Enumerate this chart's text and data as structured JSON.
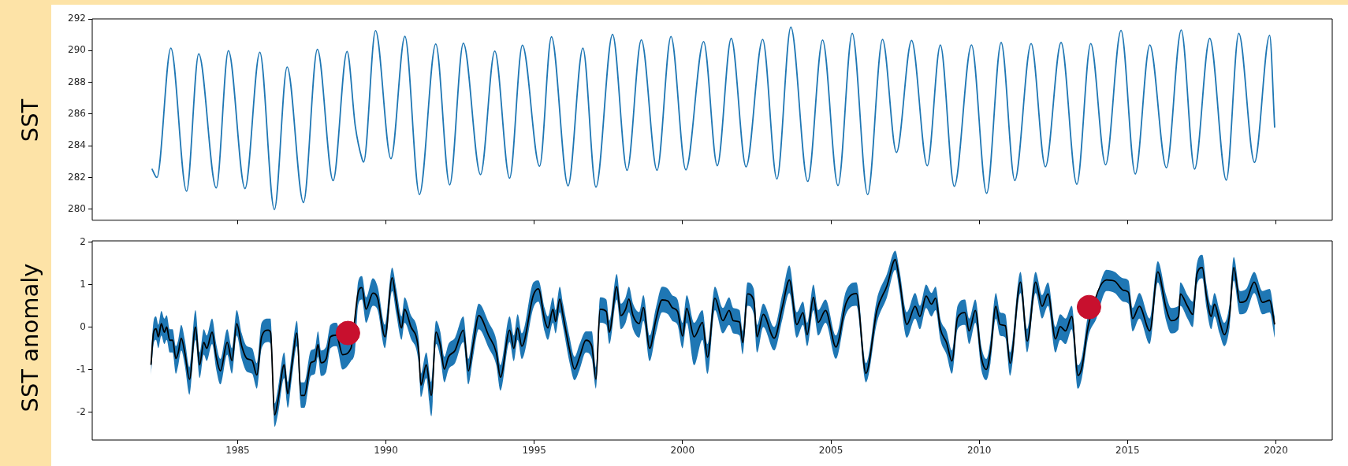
{
  "chart_data": [
    {
      "type": "line",
      "ylabel": "SST",
      "xlim": [
        1980.1,
        2021.9
      ],
      "xticks": [
        1985,
        1990,
        1995,
        2000,
        2005,
        2010,
        2015,
        2020
      ],
      "ylim": [
        279.3,
        292
      ],
      "yticks": [
        280,
        282,
        284,
        286,
        288,
        290,
        292
      ],
      "tick_labels": "y",
      "series": [
        {
          "color": "#1f77b4",
          "x": [
            1982.11,
            1982.28,
            1982.75,
            1983.28,
            1983.69,
            1984.28,
            1984.69,
            1985.25,
            1985.75,
            1986.24,
            1986.67,
            1987.22,
            1987.69,
            1988.22,
            1988.69,
            1988.97,
            1989.19,
            1989.25,
            1989.65,
            1990.17,
            1990.64,
            1991.13,
            1991.68,
            1992.15,
            1992.61,
            1993.19,
            1993.67,
            1994.17,
            1994.6,
            1995.18,
            1995.58,
            1996.14,
            1996.64,
            1997.08,
            1997.64,
            1998.13,
            1998.61,
            1999.14,
            1999.61,
            2000.11,
            2000.71,
            2001.17,
            2001.64,
            2002.14,
            2002.7,
            2003.18,
            2003.65,
            2004.22,
            2004.72,
            2005.24,
            2005.72,
            2006.24,
            2006.74,
            2007.21,
            2007.72,
            2008.25,
            2008.69,
            2009.16,
            2009.74,
            2010.25,
            2010.74,
            2011.2,
            2011.75,
            2012.23,
            2012.76,
            2013.29,
            2013.76,
            2014.26,
            2014.78,
            2015.26,
            2015.75,
            2016.31,
            2016.81,
            2017.26,
            2017.77,
            2018.33,
            2018.75,
            2019.28,
            2019.79,
            2019.96
          ],
          "values": [
            282.55,
            282.0,
            290.16,
            281.13,
            289.8,
            281.34,
            290.0,
            281.3,
            289.9,
            279.97,
            288.97,
            280.42,
            290.08,
            281.8,
            289.95,
            285.2,
            283.2,
            282.97,
            291.26,
            283.18,
            290.9,
            280.92,
            290.42,
            281.53,
            290.47,
            282.18,
            289.97,
            281.95,
            290.34,
            282.71,
            290.87,
            281.47,
            290.16,
            281.39,
            291.03,
            282.45,
            290.68,
            282.45,
            290.89,
            282.48,
            290.57,
            282.74,
            290.77,
            282.67,
            290.7,
            281.9,
            291.48,
            281.75,
            290.67,
            281.49,
            291.09,
            280.92,
            290.7,
            283.58,
            290.64,
            282.74,
            290.36,
            281.44,
            290.36,
            281.0,
            290.51,
            281.8,
            290.44,
            282.67,
            290.51,
            281.57,
            290.44,
            282.8,
            291.27,
            282.22,
            290.36,
            282.61,
            291.3,
            282.53,
            290.77,
            281.83,
            291.09,
            282.95,
            290.96,
            285.14
          ]
        }
      ]
    },
    {
      "type": "line",
      "ylabel": "SST anomaly",
      "xlim": [
        1980.1,
        2021.9
      ],
      "xticks": [
        1985,
        1990,
        1995,
        2000,
        2005,
        2010,
        2015,
        2020
      ],
      "ylim": [
        -2.66,
        2.03
      ],
      "yticks": [
        -2,
        -1,
        0,
        1,
        2
      ],
      "x": [
        1982.08,
        1982.17,
        1982.25,
        1982.33,
        1982.43,
        1982.53,
        1982.61,
        1982.71,
        1982.81,
        1982.92,
        1983.0,
        1983.1,
        1983.22,
        1983.38,
        1983.58,
        1983.72,
        1983.86,
        1983.96,
        1984.14,
        1984.28,
        1984.42,
        1984.65,
        1984.81,
        1984.97,
        1985.14,
        1985.31,
        1985.49,
        1985.65,
        1985.81,
        1986.03,
        1986.11,
        1986.25,
        1986.36,
        1986.57,
        1986.69,
        1986.83,
        1987.0,
        1987.14,
        1987.25,
        1987.47,
        1987.61,
        1987.71,
        1987.81,
        1987.99,
        1988.13,
        1988.33,
        1988.54,
        1988.82,
        1988.96,
        1989.06,
        1989.19,
        1989.33,
        1989.56,
        1989.72,
        1989.97,
        1990.21,
        1990.35,
        1990.53,
        1990.63,
        1990.83,
        1991.11,
        1991.18,
        1991.36,
        1991.53,
        1991.69,
        1991.83,
        1991.97,
        1992.11,
        1992.33,
        1992.61,
        1992.78,
        1992.94,
        1993.13,
        1993.47,
        1993.72,
        1993.86,
        1994.17,
        1994.31,
        1994.44,
        1994.58,
        1994.97,
        1995.14,
        1995.35,
        1995.46,
        1995.63,
        1995.72,
        1995.86,
        1995.97,
        1996.18,
        1996.36,
        1996.53,
        1996.74,
        1996.94,
        1997.08,
        1997.22,
        1997.43,
        1997.53,
        1997.78,
        1997.92,
        1998.08,
        1998.19,
        1998.33,
        1998.54,
        1998.68,
        1998.89,
        1999.1,
        1999.31,
        1999.51,
        1999.65,
        1999.83,
        2000.0,
        2000.14,
        2000.39,
        2000.67,
        2000.84,
        2001.09,
        2001.36,
        2001.57,
        2001.71,
        2001.92,
        2002.03,
        2002.19,
        2002.4,
        2002.51,
        2002.72,
        2003.09,
        2003.37,
        2003.6,
        2003.85,
        2004.06,
        2004.2,
        2004.41,
        2004.57,
        2004.82,
        2005.17,
        2005.51,
        2005.86,
        2006.18,
        2006.55,
        2006.89,
        2007.17,
        2007.31,
        2007.56,
        2007.84,
        2008.0,
        2008.21,
        2008.39,
        2008.53,
        2008.69,
        2008.9,
        2009.08,
        2009.27,
        2009.52,
        2009.66,
        2009.87,
        2010.07,
        2010.24,
        2010.38,
        2010.56,
        2010.7,
        2010.88,
        2011.04,
        2011.39,
        2011.62,
        2011.9,
        2012.12,
        2012.32,
        2012.57,
        2012.73,
        2012.91,
        2013.12,
        2013.33,
        2013.46,
        2013.67,
        2013.95,
        2014.29,
        2014.57,
        2014.85,
        2015.03,
        2015.17,
        2015.4,
        2015.75,
        2016.02,
        2016.3,
        2016.47,
        2016.72,
        2016.78,
        2017.02,
        2017.2,
        2017.34,
        2017.52,
        2017.66,
        2017.82,
        2017.93,
        2018.1,
        2018.26,
        2018.44,
        2018.58,
        2018.79,
        2019.0,
        2019.27,
        2019.55,
        2019.79,
        2019.96
      ],
      "series": [
        {
          "type": "line",
          "color": "#000000",
          "values": [
            -0.89,
            -0.12,
            -0.04,
            -0.23,
            0.08,
            -0.12,
            0,
            -0.31,
            -0.31,
            -0.74,
            -0.6,
            -0.26,
            -0.6,
            -1.23,
            0,
            -0.89,
            -0.36,
            -0.5,
            -0.12,
            -0.7,
            -1.03,
            -0.36,
            -0.79,
            0.08,
            -0.45,
            -0.74,
            -0.79,
            -1.13,
            -0.23,
            -0.07,
            -0.12,
            -2.07,
            -1.74,
            -0.89,
            -1.57,
            -0.89,
            -0.14,
            -1.61,
            -1.61,
            -0.84,
            -0.79,
            -0.41,
            -0.84,
            -0.74,
            -0.23,
            -0.19,
            -0.65,
            -0.5,
            null,
            0.8,
            0.93,
            0.42,
            0.8,
            0.68,
            -0.23,
            1.16,
            0.61,
            -0.02,
            0.42,
            0.03,
            -0.6,
            -1.37,
            -0.89,
            -1.61,
            -0.12,
            -0.41,
            -0.99,
            -0.7,
            -0.55,
            -0.07,
            -1.03,
            -0.41,
            0.27,
            -0.21,
            -0.6,
            -1.18,
            -0.07,
            -0.5,
            -0.02,
            -0.45,
            0.75,
            0.9,
            0.17,
            -0.02,
            0.42,
            0.13,
            0.66,
            0.27,
            -0.5,
            -0.99,
            -0.7,
            -0.31,
            -0.45,
            -1.23,
            0.42,
            0.37,
            -0.12,
            0.95,
            0.27,
            0.42,
            0.66,
            0.27,
            0.08,
            0.46,
            -0.5,
            0.17,
            0.64,
            0.61,
            0.46,
            0.37,
            -0.21,
            0.44,
            -0.23,
            0.11,
            -0.71,
            0.68,
            0.15,
            0.39,
            0.15,
            0.12,
            -0.37,
            0.78,
            0.63,
            -0.23,
            0.3,
            -0.26,
            0.49,
            1.11,
            0.06,
            0.34,
            -0.18,
            0.7,
            0.11,
            0.39,
            -0.47,
            0.56,
            0.79,
            -1.09,
            0.39,
            0.97,
            1.59,
            1.11,
            0.06,
            0.49,
            0.25,
            0.73,
            0.54,
            0.68,
            -0.04,
            -0.37,
            -0.8,
            0.22,
            0.34,
            -0.09,
            0.39,
            -0.71,
            -1.0,
            -0.56,
            0.49,
            0.06,
            0.03,
            -0.85,
            1.06,
            -0.33,
            1.06,
            0.49,
            0.78,
            -0.28,
            0.01,
            -0.09,
            0.25,
            -1.14,
            -0.95,
            0.01,
            null,
            1.11,
            1.08,
            0.87,
            0.82,
            0.2,
            0.49,
            -0.09,
            1.3,
            0.44,
            0.15,
            0.25,
            0.78,
            0.49,
            0.3,
            1.25,
            1.4,
            0.73,
            0.25,
            0.54,
            0.15,
            -0.18,
            0.3,
            1.4,
            0.58,
            0.63,
            1.06,
            0.58,
            0.63,
            0.06
          ],
          "lower": [
            -1.15,
            -0.4,
            -0.3,
            -0.5,
            -0.2,
            -0.4,
            -0.3,
            -0.6,
            -0.6,
            -1.1,
            -0.9,
            -0.55,
            -0.9,
            -1.6,
            -0.3,
            -1.2,
            -0.65,
            -0.8,
            -0.4,
            -1.0,
            -1.35,
            -0.65,
            -1.1,
            -0.2,
            -0.75,
            -1.05,
            -1.1,
            -1.45,
            -0.5,
            -0.35,
            -0.4,
            -2.35,
            -2.05,
            -1.2,
            -1.9,
            -1.2,
            -0.45,
            -1.9,
            -1.9,
            -1.15,
            -1.1,
            -0.7,
            -1.15,
            -1.05,
            -0.5,
            -0.45,
            -1.0,
            -0.8,
            -0.55,
            0.5,
            0.65,
            0.1,
            0.5,
            0.4,
            -0.5,
            0.85,
            0.3,
            -0.3,
            0.1,
            -0.25,
            -0.9,
            -1.65,
            -1.2,
            -2.1,
            -0.4,
            -0.7,
            -1.3,
            -1.0,
            -0.85,
            -0.35,
            -1.35,
            -0.7,
            -0.05,
            -0.5,
            -0.9,
            -1.5,
            -0.35,
            -0.8,
            -0.3,
            -0.75,
            0.45,
            0.6,
            -0.1,
            -0.3,
            0.1,
            -0.15,
            0.35,
            0.0,
            -0.8,
            -1.25,
            -1.0,
            -0.6,
            -0.75,
            -1.45,
            0.1,
            0.05,
            -0.4,
            0.65,
            -0.05,
            0.1,
            0.35,
            -0.05,
            -0.25,
            0.15,
            -0.8,
            -0.15,
            0.35,
            0.3,
            0.15,
            0.05,
            -0.5,
            0.1,
            -0.9,
            -0.3,
            -1.1,
            0.4,
            -0.15,
            0.05,
            -0.15,
            -0.2,
            -0.65,
            0.5,
            0.3,
            -0.6,
            0.0,
            -0.55,
            0.2,
            0.8,
            -0.25,
            0.05,
            -0.45,
            0.4,
            -0.2,
            0.1,
            -0.75,
            0.3,
            0.5,
            -1.3,
            0.1,
            0.7,
            1.35,
            0.85,
            -0.25,
            0.2,
            -0.05,
            0.45,
            0.25,
            0.4,
            -0.3,
            -0.65,
            -1.1,
            -0.05,
            0.05,
            -0.4,
            0.1,
            -1.0,
            -1.25,
            -0.85,
            0.2,
            -0.2,
            -0.25,
            -1.15,
            0.8,
            -0.6,
            0.8,
            0.2,
            0.5,
            -0.6,
            -0.3,
            -0.4,
            -0.05,
            -1.45,
            -1.2,
            -0.25,
            0.2,
            0.85,
            0.8,
            0.6,
            0.55,
            -0.1,
            0.2,
            -0.4,
            1.05,
            0.15,
            -0.15,
            -0.05,
            0.5,
            0.2,
            0.0,
            1.0,
            1.15,
            0.45,
            -0.05,
            0.25,
            -0.15,
            -0.45,
            0.0,
            1.1,
            0.3,
            0.35,
            0.8,
            0.3,
            0.35,
            -0.25
          ],
          "upper": [
            -0.65,
            0.15,
            0.25,
            0.05,
            0.38,
            0.2,
            0.28,
            -0.05,
            -0.05,
            -0.45,
            -0.3,
            0.05,
            -0.3,
            -0.95,
            0.4,
            -0.6,
            -0.05,
            -0.2,
            0.2,
            -0.4,
            -0.75,
            -0.05,
            -0.5,
            0.4,
            -0.15,
            -0.45,
            -0.5,
            -0.85,
            0.1,
            0.2,
            0.2,
            -1.8,
            -1.45,
            -0.6,
            -1.3,
            -0.6,
            0.15,
            -1.3,
            -1.3,
            -0.55,
            -0.5,
            -0.1,
            -0.55,
            -0.45,
            0.05,
            0.1,
            -0.35,
            -0.2,
            0.05,
            1.05,
            1.2,
            0.7,
            1.15,
            0.95,
            0.05,
            1.4,
            0.9,
            0.25,
            0.7,
            0.3,
            -0.3,
            -1.1,
            -0.6,
            -1.3,
            0.15,
            -0.1,
            -0.7,
            -0.4,
            -0.25,
            0.25,
            -0.75,
            -0.1,
            0.55,
            0.1,
            -0.3,
            -0.9,
            0.25,
            -0.2,
            0.3,
            -0.15,
            1.05,
            1.1,
            0.45,
            0.25,
            0.7,
            0.4,
            0.95,
            0.55,
            -0.2,
            -0.7,
            -0.4,
            -0.1,
            -0.1,
            -0.95,
            0.7,
            0.65,
            0.15,
            1.25,
            0.55,
            0.7,
            0.95,
            0.55,
            0.35,
            0.75,
            -0.2,
            0.45,
            0.95,
            0.9,
            0.75,
            0.65,
            0.1,
            0.75,
            0.1,
            0.4,
            -0.4,
            0.95,
            0.45,
            0.7,
            0.45,
            0.4,
            -0.1,
            1.05,
            0.9,
            0.05,
            0.55,
            0.0,
            0.8,
            1.45,
            0.35,
            0.6,
            0.1,
            1.0,
            0.4,
            0.65,
            -0.2,
            0.85,
            1.05,
            -0.85,
            0.65,
            1.25,
            1.8,
            1.35,
            0.35,
            0.8,
            0.5,
            1.0,
            0.8,
            0.95,
            0.2,
            -0.1,
            -0.55,
            0.5,
            0.65,
            0.2,
            0.65,
            -0.45,
            -0.75,
            -0.3,
            0.8,
            0.35,
            0.3,
            -0.6,
            1.3,
            -0.05,
            1.3,
            0.75,
            1.05,
            0.0,
            0.3,
            0.2,
            0.5,
            -0.9,
            -0.7,
            0.3,
            0.75,
            1.35,
            1.3,
            1.15,
            1.1,
            0.45,
            0.8,
            0.2,
            1.55,
            0.75,
            0.45,
            0.5,
            1.05,
            0.75,
            0.6,
            1.5,
            1.7,
            1.0,
            0.5,
            0.8,
            0.4,
            0.1,
            0.55,
            1.65,
            0.85,
            0.9,
            1.3,
            0.85,
            0.9,
            0.25
          ]
        },
        {
          "type": "scatter",
          "color": "#c8102e",
          "marker": "circle",
          "x": [
            1988.72,
            2013.7
          ],
          "values": [
            -0.14,
            0.47
          ]
        }
      ]
    }
  ]
}
